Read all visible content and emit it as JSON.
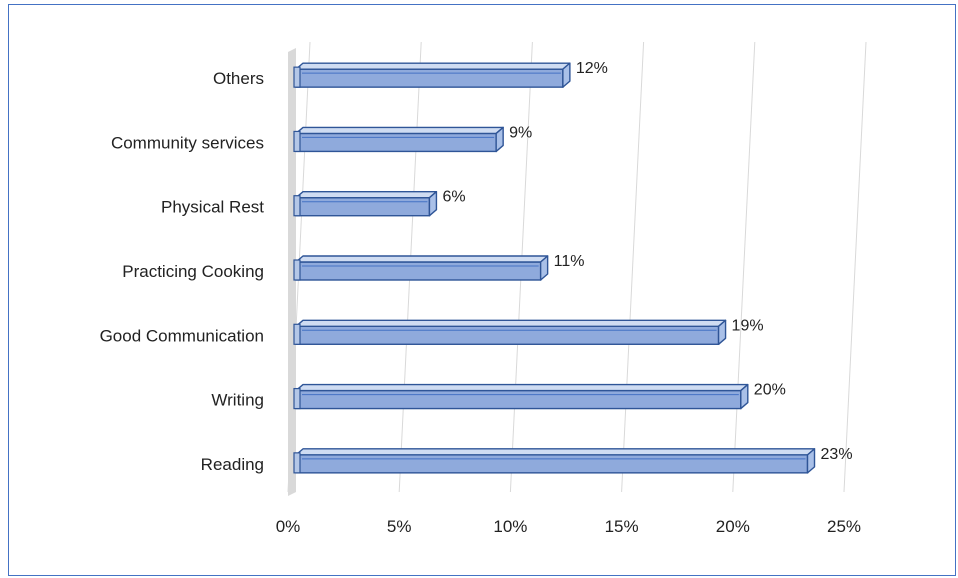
{
  "chart_data": {
    "type": "bar",
    "orientation": "horizontal",
    "categories": [
      "Reading",
      "Writing",
      "Good Communication",
      "Practicing Cooking",
      "Physical Rest",
      "Community services",
      "Others"
    ],
    "values": [
      23,
      20,
      19,
      11,
      6,
      9,
      12
    ],
    "value_labels": [
      "23%",
      "20%",
      "19%",
      "11%",
      "6%",
      "9%",
      "12%"
    ],
    "xlim": [
      0,
      25
    ],
    "xticks": [
      0,
      5,
      10,
      15,
      20,
      25
    ],
    "xtick_labels": [
      "0%",
      "5%",
      "10%",
      "15%",
      "20%",
      "25%"
    ],
    "grid": true,
    "style": "3d-bar",
    "bar_color": "#8FAADC",
    "bar_edge_color": "#2F5597"
  }
}
